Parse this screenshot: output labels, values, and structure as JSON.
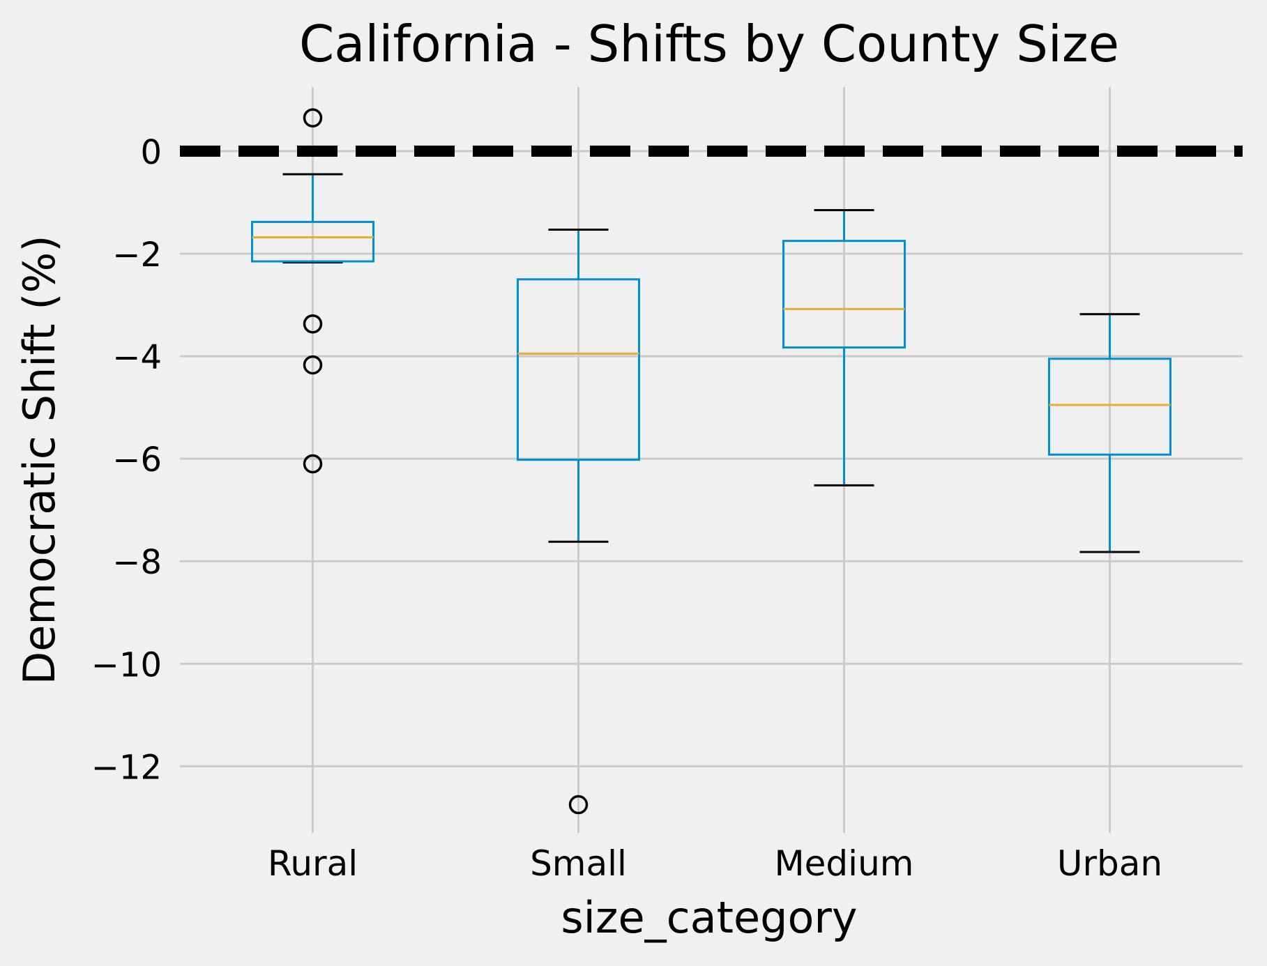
{
  "chart_data": {
    "type": "box",
    "title": "California - Shifts by County Size",
    "xlabel": "size_category",
    "ylabel": "Democratic Shift (%)",
    "ylim": [
      -13.3,
      1.25
    ],
    "yticks": [
      0,
      -2,
      -4,
      -6,
      -8,
      -10,
      -12
    ],
    "ytick_labels": [
      "0",
      "−2",
      "−4",
      "−6",
      "−8",
      "−10",
      "−12"
    ],
    "categories": [
      "Rural",
      "Small",
      "Medium",
      "Urban"
    ],
    "boxes": [
      {
        "category": "Rural",
        "whisker_low": -2.17,
        "q1": -2.15,
        "median": -1.68,
        "q3": -1.38,
        "whisker_high": -0.45,
        "outliers": [
          0.65,
          -3.37,
          -4.17,
          -6.1
        ]
      },
      {
        "category": "Small",
        "whisker_low": -7.62,
        "q1": -6.02,
        "median": -3.95,
        "q3": -2.5,
        "whisker_high": -1.53,
        "outliers": [
          -12.75
        ]
      },
      {
        "category": "Medium",
        "whisker_low": -6.52,
        "q1": -3.83,
        "median": -3.08,
        "q3": -1.75,
        "whisker_high": -1.15,
        "outliers": []
      },
      {
        "category": "Urban",
        "whisker_low": -7.82,
        "q1": -5.92,
        "median": -4.95,
        "q3": -4.05,
        "whisker_high": -3.18,
        "outliers": []
      }
    ],
    "reference_line": {
      "y": 0,
      "style": "dashed",
      "color": "#000000"
    },
    "grid": true,
    "colors": {
      "background": "#f0f0f0",
      "grid": "#cbcbcb",
      "box": "#008fd5",
      "median": "#e5ae38",
      "caps": "#000000",
      "outliers": "#000000"
    }
  }
}
